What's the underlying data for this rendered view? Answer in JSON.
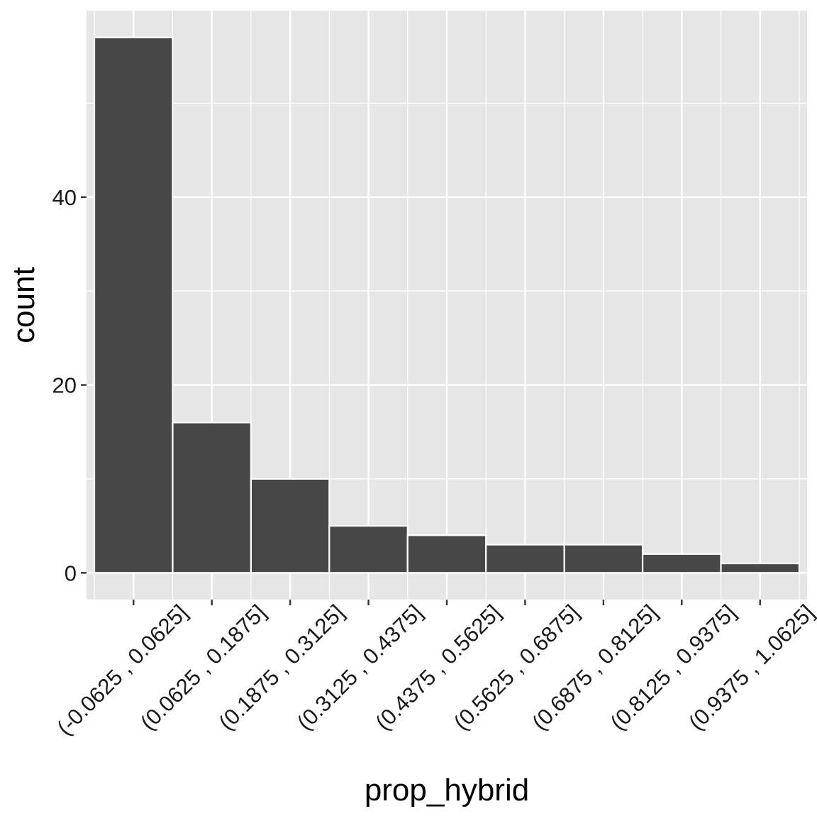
{
  "colors": {
    "panel_background": "#E6E6E6",
    "grid_line": "#FFFFFF",
    "bar_fill": "#474747",
    "bar_outline": "#FFFFFF",
    "tick_mark": "#333333",
    "tick_text": "#1A1A1A",
    "page_background": "#FFFFFF"
  },
  "chart_data": {
    "type": "bar",
    "title": "",
    "xlabel": "prop_hybrid",
    "ylabel": "count",
    "categories": [
      "(-0.0625 , 0.0625]",
      "(0.0625 , 0.1875]",
      "(0.1875 , 0.3125]",
      "(0.3125 , 0.4375]",
      "(0.4375 , 0.5625]",
      "(0.5625 , 0.6875]",
      "(0.6875 , 0.8125]",
      "(0.8125 , 0.9375]",
      "(0.9375 , 1.0625]"
    ],
    "values": [
      57,
      16,
      10,
      5,
      4,
      3,
      3,
      2,
      1
    ],
    "ylim": [
      -2.85,
      59.85
    ],
    "yticks": [
      0,
      20,
      40
    ],
    "yticks_minor": [
      10,
      30,
      50
    ],
    "grid": true,
    "legend": "none"
  }
}
